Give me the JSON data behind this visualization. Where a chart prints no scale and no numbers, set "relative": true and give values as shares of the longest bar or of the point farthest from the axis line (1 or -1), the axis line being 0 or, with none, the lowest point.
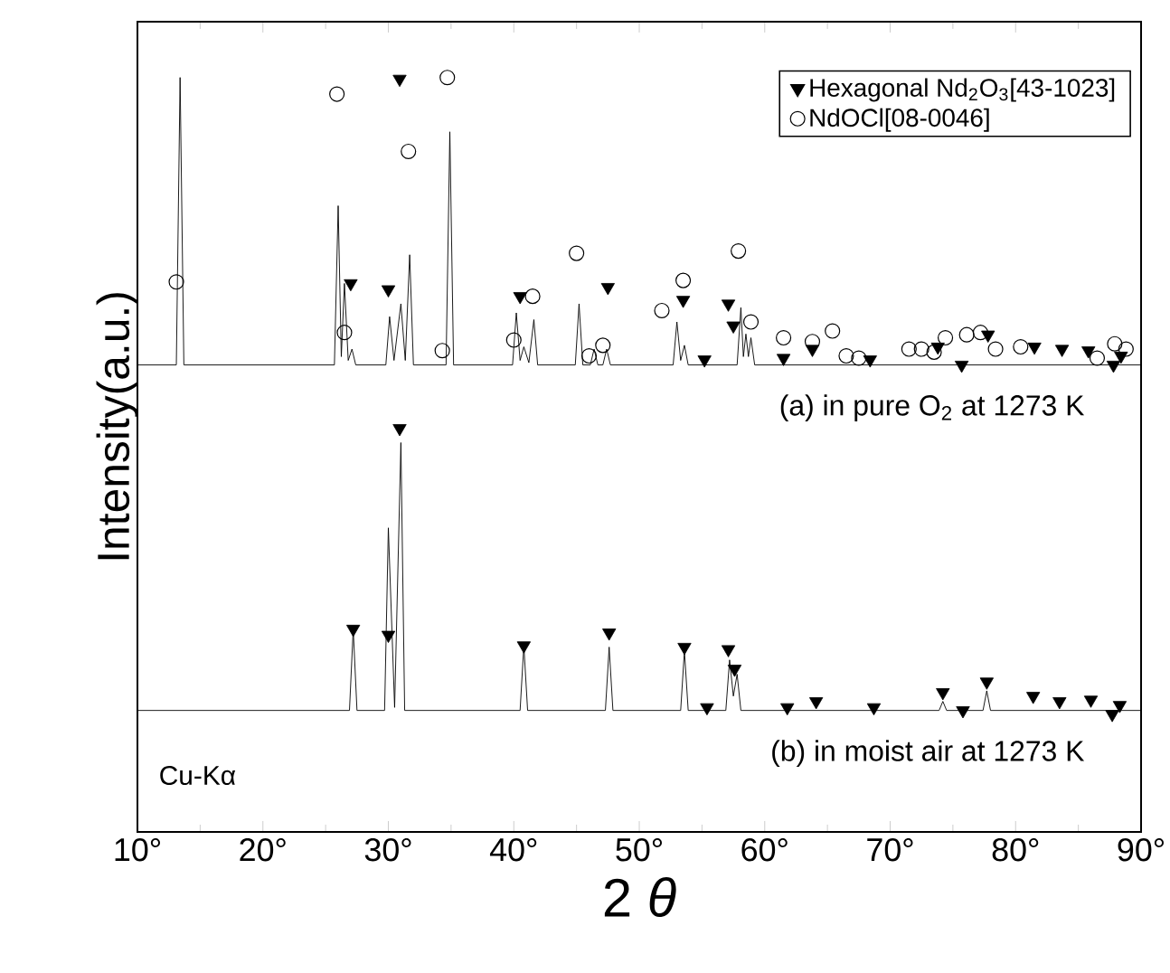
{
  "chart_data": {
    "type": "line",
    "relative": true,
    "xlabel": "2 *θ*",
    "ylabel": "Intensity(a.u.)",
    "xlim": [
      10,
      90
    ],
    "xticks": [
      {
        "value": 10,
        "label": "10°"
      },
      {
        "value": 20,
        "label": "20°"
      },
      {
        "value": 30,
        "label": "30°"
      },
      {
        "value": 40,
        "label": "40°"
      },
      {
        "value": 50,
        "label": "50°"
      },
      {
        "value": 60,
        "label": "60°"
      },
      {
        "value": 70,
        "label": "70°"
      },
      {
        "value": 80,
        "label": "80°"
      },
      {
        "value": 90,
        "label": "90°"
      }
    ],
    "legend": "top right",
    "annotations": [
      "Cu-Kα"
    ],
    "series": [
      {
        "name": "(a)  in pure O$_{2}$ at 1273 K",
        "color": "#000000",
        "x": [
          10,
          13.1,
          13.4,
          13.7,
          25.7,
          26.0,
          26.25,
          26.5,
          26.8,
          27.1,
          27.4,
          29.8,
          30.1,
          30.45,
          31.0,
          31.35,
          31.7,
          32.0,
          34.6,
          34.9,
          35.2,
          39.9,
          40.2,
          40.5,
          40.8,
          41.2,
          41.6,
          41.9,
          44.9,
          45.2,
          45.5,
          46.1,
          46.4,
          46.7,
          47.1,
          47.4,
          47.7,
          52.7,
          53.0,
          53.3,
          53.6,
          53.9,
          57.8,
          58.1,
          58.3,
          58.5,
          58.7,
          58.9,
          59.2,
          90
        ],
        "values": [
          0.619,
          0.619,
          1.0,
          0.619,
          0.619,
          0.83,
          0.63,
          0.727,
          0.625,
          0.64,
          0.619,
          0.619,
          0.683,
          0.625,
          0.7,
          0.625,
          0.765,
          0.619,
          0.619,
          0.928,
          0.619,
          0.619,
          0.688,
          0.625,
          0.643,
          0.622,
          0.679,
          0.619,
          0.619,
          0.7,
          0.619,
          0.619,
          0.64,
          0.619,
          0.619,
          0.64,
          0.619,
          0.619,
          0.676,
          0.625,
          0.645,
          0.619,
          0.619,
          0.695,
          0.63,
          0.66,
          0.63,
          0.655,
          0.619,
          0.619
        ]
      },
      {
        "name": "(b)  in moist air at 1273 K",
        "color": "#000000",
        "x": [
          10,
          26.9,
          27.2,
          27.5,
          29.7,
          30.0,
          30.5,
          31.0,
          31.3,
          40.5,
          40.8,
          41.1,
          47.3,
          47.6,
          47.9,
          53.3,
          53.6,
          53.9,
          56.9,
          57.2,
          57.5,
          57.8,
          58.1,
          73.9,
          74.2,
          74.5,
          77.4,
          77.7,
          78.0,
          90
        ],
        "values": [
          0.161,
          0.161,
          0.269,
          0.161,
          0.161,
          0.403,
          0.165,
          0.516,
          0.161,
          0.161,
          0.247,
          0.161,
          0.161,
          0.245,
          0.161,
          0.161,
          0.24,
          0.161,
          0.161,
          0.228,
          0.18,
          0.209,
          0.161,
          0.161,
          0.173,
          0.161,
          0.161,
          0.187,
          0.161,
          0.161
        ]
      },
      {
        "type": "scatter",
        "name": "Hexagonal Nd$_{2}$O$_{3}$[43-1023]",
        "marker": "triangle",
        "color": "#000000",
        "x": [
          27.0,
          30.0,
          30.9,
          40.5,
          47.5,
          53.5,
          55.2,
          57.1,
          57.5,
          61.5,
          63.8,
          68.4,
          73.8,
          75.7,
          77.8,
          81.5,
          83.7,
          85.8,
          87.8,
          88.4,
          27.2,
          30.0,
          30.9,
          40.8,
          47.6,
          53.6,
          55.4,
          57.1,
          57.6,
          61.8,
          64.1,
          68.7,
          74.2,
          75.8,
          77.7,
          81.4,
          83.5,
          86.0,
          87.7,
          88.3
        ],
        "values": [
          0.727,
          0.719,
          0.998,
          0.71,
          0.722,
          0.705,
          0.626,
          0.7,
          0.671,
          0.628,
          0.64,
          0.626,
          0.643,
          0.619,
          0.659,
          0.643,
          0.64,
          0.638,
          0.619,
          0.631,
          0.269,
          0.261,
          0.535,
          0.247,
          0.264,
          0.245,
          0.165,
          0.242,
          0.216,
          0.165,
          0.173,
          0.165,
          0.185,
          0.161,
          0.199,
          0.18,
          0.173,
          0.175,
          0.156,
          0.168
        ]
      },
      {
        "type": "scatter",
        "name": "NdOCl[08-0046]",
        "marker": "circle",
        "color": "#000000",
        "x": [
          13.1,
          25.9,
          26.5,
          31.6,
          34.3,
          34.7,
          40.0,
          41.5,
          45.0,
          46.0,
          47.1,
          51.8,
          53.5,
          57.9,
          58.9,
          61.5,
          63.8,
          65.4,
          66.5,
          67.5,
          71.5,
          72.5,
          73.5,
          74.4,
          76.1,
          77.2,
          78.4,
          80.4,
          86.5,
          87.9,
          88.8
        ],
        "values": [
          0.729,
          0.978,
          0.662,
          0.902,
          0.638,
          1.0,
          0.652,
          0.71,
          0.767,
          0.631,
          0.645,
          0.691,
          0.731,
          0.77,
          0.676,
          0.655,
          0.65,
          0.664,
          0.631,
          0.628,
          0.64,
          0.64,
          0.636,
          0.655,
          0.659,
          0.662,
          0.64,
          0.643,
          0.628,
          0.647,
          0.64
        ]
      }
    ]
  }
}
